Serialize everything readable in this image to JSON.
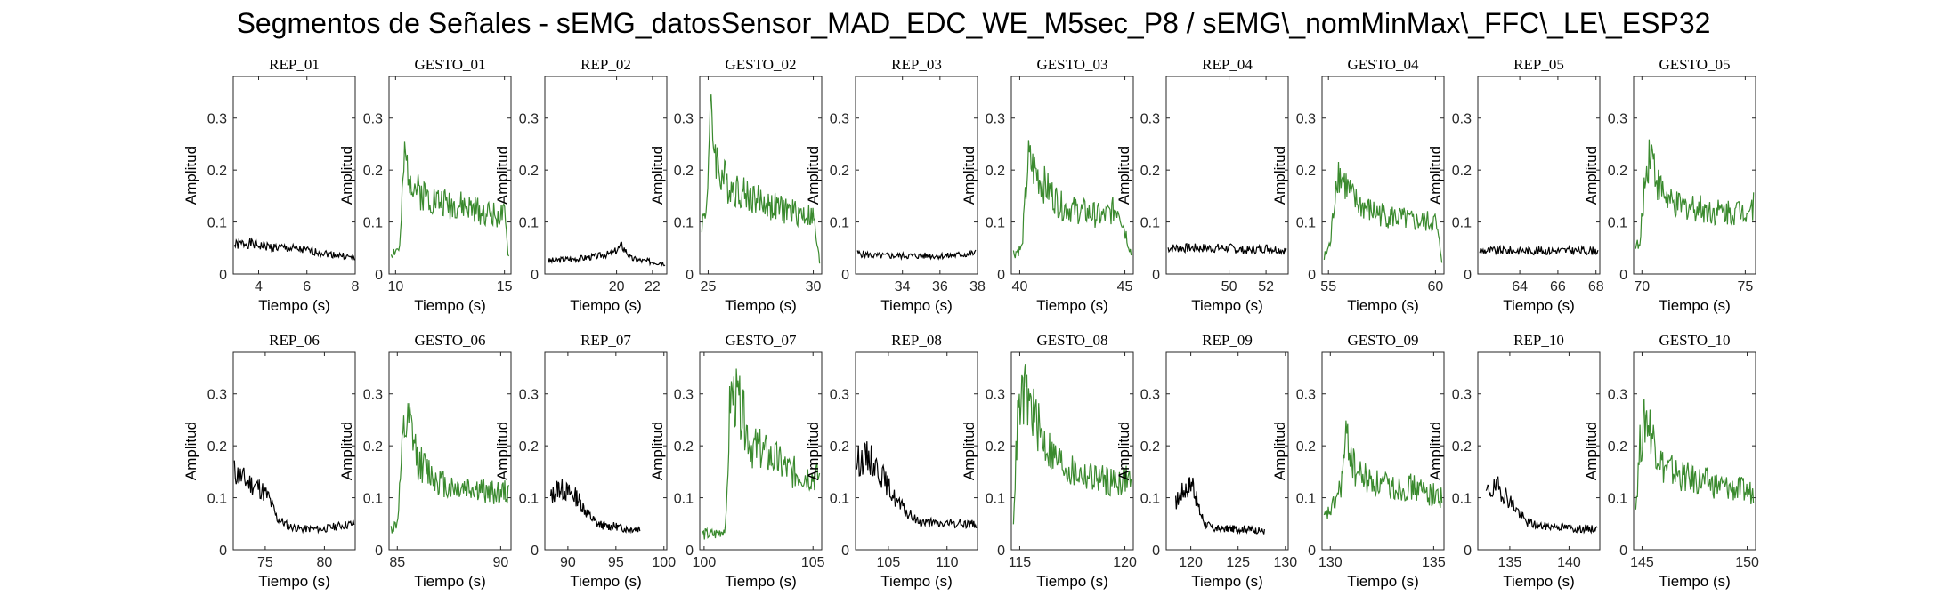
{
  "figure": {
    "title": "Segmentos de Señales - sEMG_datosSensor_MAD_EDC_WE_M5sec_P8 / sEMG\\_nomMinMax\\_FFC\\_LE\\_ESP32",
    "colors": {
      "rep": "#000000",
      "gesto": "#3a8a2e"
    }
  },
  "chart_data": [
    {
      "type": "line",
      "title": "REP_01",
      "xlabel": "Tiempo (s)",
      "ylabel": "Amplitud",
      "xlim": [
        2.95,
        8.0
      ],
      "ylim": [
        0,
        0.38
      ],
      "xticks": [
        4,
        6,
        8
      ],
      "yticks": [
        0,
        0.1,
        0.2,
        0.3
      ],
      "kind": "rep",
      "seed": 1,
      "x": [
        3.0,
        3.5,
        4.0,
        4.5,
        5.0,
        5.5,
        6.0,
        6.5,
        7.0,
        7.5,
        8.0
      ],
      "values": [
        0.055,
        0.06,
        0.055,
        0.052,
        0.05,
        0.048,
        0.045,
        0.042,
        0.038,
        0.035,
        0.03
      ]
    },
    {
      "type": "line",
      "title": "GESTO_01",
      "xlabel": "Tiempo (s)",
      "ylabel": "Amplitud",
      "xlim": [
        9.7,
        15.3
      ],
      "ylim": [
        0,
        0.38
      ],
      "xticks": [
        10,
        15
      ],
      "yticks": [
        0,
        0.1,
        0.2,
        0.3
      ],
      "kind": "gesto",
      "seed": 2,
      "x": [
        9.8,
        10.2,
        10.4,
        10.6,
        11,
        12,
        13,
        14,
        15,
        15.2
      ],
      "values": [
        0.04,
        0.05,
        0.22,
        0.2,
        0.16,
        0.14,
        0.13,
        0.12,
        0.11,
        0.03
      ]
    },
    {
      "type": "line",
      "title": "REP_02",
      "xlabel": "Tiempo (s)",
      "ylabel": "Amplitud",
      "xlim": [
        16.0,
        22.8
      ],
      "ylim": [
        0,
        0.38
      ],
      "xticks": [
        20,
        22
      ],
      "yticks": [
        0,
        0.1,
        0.2,
        0.3
      ],
      "kind": "rep",
      "seed": 3,
      "x": [
        16.2,
        17,
        18,
        19,
        19.8,
        20.3,
        20.8,
        21.5,
        22.7
      ],
      "values": [
        0.025,
        0.028,
        0.03,
        0.035,
        0.04,
        0.055,
        0.03,
        0.025,
        0.022
      ]
    },
    {
      "type": "line",
      "title": "GESTO_02",
      "xlabel": "Tiempo (s)",
      "ylabel": "Amplitud",
      "xlim": [
        24.6,
        30.4
      ],
      "ylim": [
        0,
        0.38
      ],
      "xticks": [
        25,
        30
      ],
      "yticks": [
        0,
        0.1,
        0.2,
        0.3
      ],
      "kind": "gesto",
      "seed": 4,
      "x": [
        24.7,
        24.9,
        25.1,
        25.5,
        26,
        27,
        28,
        29,
        30,
        30.3
      ],
      "values": [
        0.1,
        0.12,
        0.3,
        0.2,
        0.17,
        0.15,
        0.13,
        0.12,
        0.11,
        0.02
      ]
    },
    {
      "type": "line",
      "title": "REP_03",
      "xlabel": "Tiempo (s)",
      "ylabel": "Amplitud",
      "xlim": [
        31.5,
        38.0
      ],
      "ylim": [
        0,
        0.38
      ],
      "xticks": [
        34,
        36,
        38
      ],
      "yticks": [
        0,
        0.1,
        0.2,
        0.3
      ],
      "kind": "rep",
      "seed": 5,
      "x": [
        31.6,
        32.5,
        33.5,
        34.5,
        35.5,
        36.5,
        37.9
      ],
      "values": [
        0.04,
        0.035,
        0.035,
        0.035,
        0.035,
        0.035,
        0.04
      ]
    },
    {
      "type": "line",
      "title": "GESTO_03",
      "xlabel": "Tiempo (s)",
      "ylabel": "Amplitud",
      "xlim": [
        39.6,
        45.4
      ],
      "ylim": [
        0,
        0.38
      ],
      "xticks": [
        40,
        45
      ],
      "yticks": [
        0,
        0.1,
        0.2,
        0.3
      ],
      "kind": "gesto",
      "seed": 6,
      "x": [
        39.7,
        40.1,
        40.4,
        40.7,
        41.2,
        42,
        43,
        44,
        44.7,
        45.3
      ],
      "values": [
        0.04,
        0.05,
        0.22,
        0.2,
        0.17,
        0.13,
        0.12,
        0.11,
        0.13,
        0.04
      ]
    },
    {
      "type": "line",
      "title": "REP_04",
      "xlabel": "Tiempo (s)",
      "ylabel": "Amplitud",
      "xlim": [
        46.6,
        53.2
      ],
      "ylim": [
        0,
        0.38
      ],
      "xticks": [
        50,
        52
      ],
      "yticks": [
        0,
        0.1,
        0.2,
        0.3
      ],
      "kind": "rep",
      "seed": 7,
      "x": [
        46.7,
        48,
        49,
        50,
        51,
        52,
        53.1
      ],
      "values": [
        0.05,
        0.05,
        0.05,
        0.05,
        0.045,
        0.05,
        0.045
      ]
    },
    {
      "type": "line",
      "title": "GESTO_04",
      "xlabel": "Tiempo (s)",
      "ylabel": "Amplitud",
      "xlim": [
        54.7,
        60.4
      ],
      "ylim": [
        0,
        0.38
      ],
      "xticks": [
        55,
        60
      ],
      "yticks": [
        0,
        0.1,
        0.2,
        0.3
      ],
      "kind": "gesto",
      "seed": 8,
      "x": [
        54.8,
        55.1,
        55.4,
        55.7,
        56.2,
        57,
        58,
        59,
        60,
        60.3
      ],
      "values": [
        0.03,
        0.06,
        0.2,
        0.18,
        0.14,
        0.12,
        0.11,
        0.1,
        0.1,
        0.03
      ]
    },
    {
      "type": "line",
      "title": "REP_05",
      "xlabel": "Tiempo (s)",
      "ylabel": "Amplitud",
      "xlim": [
        61.8,
        68.2
      ],
      "ylim": [
        0,
        0.38
      ],
      "xticks": [
        64,
        66,
        68
      ],
      "yticks": [
        0,
        0.1,
        0.2,
        0.3
      ],
      "kind": "rep",
      "seed": 9,
      "x": [
        61.9,
        63,
        64,
        65,
        66,
        67,
        68.1
      ],
      "values": [
        0.045,
        0.045,
        0.045,
        0.045,
        0.045,
        0.045,
        0.045
      ]
    },
    {
      "type": "line",
      "title": "GESTO_05",
      "xlabel": "Tiempo (s)",
      "ylabel": "Amplitud",
      "xlim": [
        69.6,
        75.5
      ],
      "ylim": [
        0,
        0.38
      ],
      "xticks": [
        70,
        75
      ],
      "yticks": [
        0,
        0.1,
        0.2,
        0.3
      ],
      "kind": "gesto",
      "seed": 10,
      "x": [
        69.7,
        69.9,
        70.1,
        70.4,
        70.8,
        71.5,
        72.5,
        73.5,
        74.5,
        75.4
      ],
      "values": [
        0.06,
        0.05,
        0.16,
        0.25,
        0.17,
        0.13,
        0.13,
        0.12,
        0.12,
        0.13
      ]
    },
    {
      "type": "line",
      "title": "REP_06",
      "xlabel": "Tiempo (s)",
      "ylabel": "Amplitud",
      "xlim": [
        72.3,
        82.6
      ],
      "ylim": [
        0,
        0.38
      ],
      "xticks": [
        75,
        80
      ],
      "yticks": [
        0,
        0.1,
        0.2,
        0.3
      ],
      "kind": "rep",
      "seed": 11,
      "x": [
        72.4,
        73.5,
        74.5,
        75.3,
        76,
        77,
        78,
        79,
        80,
        81,
        82.5
      ],
      "values": [
        0.15,
        0.13,
        0.12,
        0.1,
        0.06,
        0.045,
        0.04,
        0.04,
        0.04,
        0.045,
        0.05
      ]
    },
    {
      "type": "line",
      "title": "GESTO_06",
      "xlabel": "Tiempo (s)",
      "ylabel": "Amplitud",
      "xlim": [
        84.6,
        90.5
      ],
      "ylim": [
        0,
        0.38
      ],
      "xticks": [
        85,
        90
      ],
      "yticks": [
        0,
        0.1,
        0.2,
        0.3
      ],
      "kind": "gesto",
      "seed": 12,
      "x": [
        84.7,
        85.0,
        85.3,
        85.6,
        86,
        86.8,
        87.5,
        88.5,
        89.5,
        90.4
      ],
      "values": [
        0.04,
        0.05,
        0.22,
        0.24,
        0.17,
        0.14,
        0.12,
        0.12,
        0.11,
        0.11
      ]
    },
    {
      "type": "line",
      "title": "REP_07",
      "xlabel": "Tiempo (s)",
      "ylabel": "Amplitud",
      "xlim": [
        87.6,
        100.3
      ],
      "ylim": [
        0,
        0.38
      ],
      "xticks": [
        90,
        95,
        100
      ],
      "yticks": [
        0,
        0.1,
        0.2,
        0.3
      ],
      "kind": "rep",
      "seed": 13,
      "x": [
        88.2,
        89,
        90,
        91,
        92,
        93,
        94,
        95,
        96,
        97.5
      ],
      "values": [
        0.1,
        0.12,
        0.11,
        0.1,
        0.07,
        0.05,
        0.045,
        0.045,
        0.04,
        0.04
      ]
    },
    {
      "type": "line",
      "title": "GESTO_07",
      "xlabel": "Tiempo (s)",
      "ylabel": "Amplitud",
      "xlim": [
        99.8,
        105.4
      ],
      "ylim": [
        0,
        0.38
      ],
      "xticks": [
        100,
        105
      ],
      "yticks": [
        0,
        0.1,
        0.2,
        0.3
      ],
      "kind": "gesto",
      "seed": 14,
      "x": [
        99.9,
        100.5,
        101.0,
        101.2,
        101.6,
        102.2,
        103,
        104,
        105.3
      ],
      "values": [
        0.03,
        0.03,
        0.04,
        0.3,
        0.28,
        0.2,
        0.18,
        0.15,
        0.14
      ]
    },
    {
      "type": "line",
      "title": "REP_08",
      "xlabel": "Tiempo (s)",
      "ylabel": "Amplitud",
      "xlim": [
        102.2,
        112.6
      ],
      "ylim": [
        0,
        0.38
      ],
      "xticks": [
        105,
        110
      ],
      "yticks": [
        0,
        0.1,
        0.2,
        0.3
      ],
      "kind": "rep",
      "seed": 15,
      "x": [
        102.3,
        103.3,
        104.3,
        105,
        105.8,
        106.6,
        107.5,
        109,
        110.5,
        112.5
      ],
      "values": [
        0.17,
        0.18,
        0.15,
        0.12,
        0.09,
        0.07,
        0.055,
        0.05,
        0.05,
        0.05
      ]
    },
    {
      "type": "line",
      "title": "GESTO_08",
      "xlabel": "Tiempo (s)",
      "ylabel": "Amplitud",
      "xlim": [
        114.6,
        120.4
      ],
      "ylim": [
        0,
        0.38
      ],
      "xticks": [
        115,
        120
      ],
      "yticks": [
        0,
        0.1,
        0.2,
        0.3
      ],
      "kind": "gesto",
      "seed": 16,
      "x": [
        114.7,
        114.9,
        115.2,
        115.6,
        116,
        116.6,
        117.5,
        118.5,
        119.5,
        120.3
      ],
      "values": [
        0.06,
        0.25,
        0.3,
        0.27,
        0.22,
        0.18,
        0.15,
        0.14,
        0.13,
        0.14
      ]
    },
    {
      "type": "line",
      "title": "REP_09",
      "xlabel": "Tiempo (s)",
      "ylabel": "Amplitud",
      "xlim": [
        117.4,
        130.3
      ],
      "ylim": [
        0,
        0.38
      ],
      "xticks": [
        120,
        125,
        130
      ],
      "yticks": [
        0,
        0.1,
        0.2,
        0.3
      ],
      "kind": "rep",
      "seed": 17,
      "x": [
        118.4,
        119,
        119.6,
        120.2,
        120.8,
        121.5,
        122.5,
        124,
        126,
        127.8
      ],
      "values": [
        0.09,
        0.11,
        0.12,
        0.13,
        0.08,
        0.05,
        0.04,
        0.04,
        0.04,
        0.035
      ]
    },
    {
      "type": "line",
      "title": "GESTO_09",
      "xlabel": "Tiempo (s)",
      "ylabel": "Amplitud",
      "xlim": [
        129.6,
        135.5
      ],
      "ylim": [
        0,
        0.38
      ],
      "xticks": [
        130,
        135
      ],
      "yticks": [
        0,
        0.1,
        0.2,
        0.3
      ],
      "kind": "gesto",
      "seed": 18,
      "x": [
        129.7,
        130.1,
        130.5,
        130.8,
        131.2,
        132,
        133,
        134,
        135.4
      ],
      "values": [
        0.06,
        0.08,
        0.12,
        0.22,
        0.15,
        0.13,
        0.12,
        0.12,
        0.1
      ]
    },
    {
      "type": "line",
      "title": "REP_10",
      "xlabel": "Tiempo (s)",
      "ylabel": "Amplitud",
      "xlim": [
        132.3,
        142.6
      ],
      "ylim": [
        0,
        0.38
      ],
      "xticks": [
        135,
        140
      ],
      "yticks": [
        0,
        0.1,
        0.2,
        0.3
      ],
      "kind": "rep",
      "seed": 19,
      "x": [
        133.0,
        134,
        134.8,
        135.5,
        136.3,
        137.5,
        139,
        140.5,
        142.4
      ],
      "values": [
        0.11,
        0.12,
        0.1,
        0.08,
        0.055,
        0.045,
        0.045,
        0.04,
        0.04
      ]
    },
    {
      "type": "line",
      "title": "GESTO_10",
      "xlabel": "Tiempo (s)",
      "ylabel": "Amplitud",
      "xlim": [
        144.6,
        150.4
      ],
      "ylim": [
        0,
        0.38
      ],
      "xticks": [
        145,
        150
      ],
      "yticks": [
        0,
        0.1,
        0.2,
        0.3
      ],
      "kind": "gesto",
      "seed": 20,
      "x": [
        144.7,
        144.9,
        145.2,
        145.5,
        146,
        147,
        148,
        149,
        150.3
      ],
      "values": [
        0.08,
        0.2,
        0.26,
        0.22,
        0.16,
        0.14,
        0.13,
        0.12,
        0.11
      ]
    }
  ]
}
